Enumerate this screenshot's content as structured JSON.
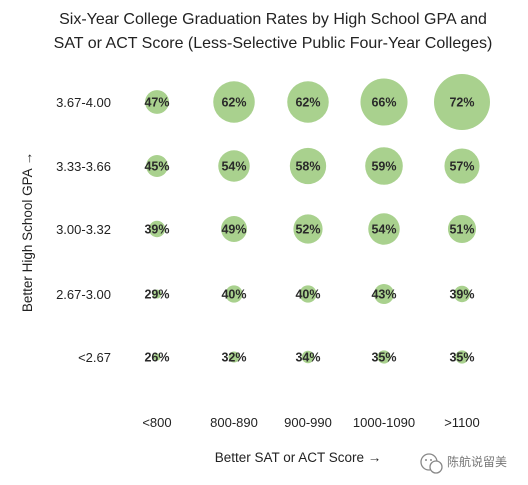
{
  "chart_data": {
    "type": "bubble",
    "title": [
      "Six-Year College Graduation Rates by High School GPA and",
      "SAT or ACT Score (Less-Selective Public Four-Year Colleges)"
    ],
    "xlabel": "Better SAT or ACT Score →",
    "ylabel": "Better High School GPA →",
    "categories_x": [
      "<800",
      "800-890",
      "900-990",
      "1000-1090",
      ">1100"
    ],
    "categories_y": [
      "3.67-4.00",
      "3.33-3.66",
      "3.00-3.32",
      "2.67-3.00",
      "<2.67"
    ],
    "values": [
      [
        47,
        62,
        62,
        66,
        72
      ],
      [
        45,
        54,
        58,
        59,
        57
      ],
      [
        39,
        49,
        52,
        54,
        51
      ],
      [
        29,
        40,
        40,
        43,
        39
      ],
      [
        26,
        32,
        34,
        35,
        35
      ]
    ],
    "value_suffix": "%",
    "bubble_color": "#a9d18e",
    "grid": false,
    "legend": "none"
  },
  "watermark": {
    "text": "陈航说留美",
    "icon": "wechat-icon"
  }
}
